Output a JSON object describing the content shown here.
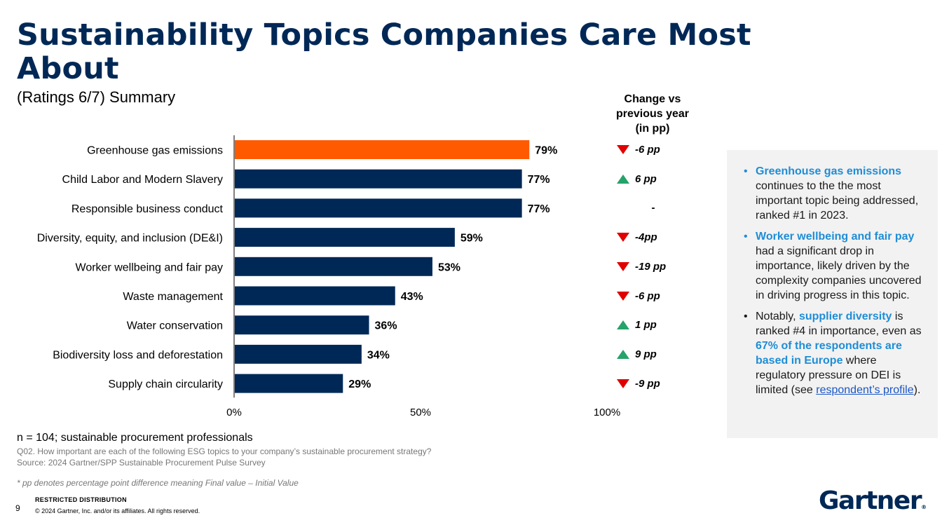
{
  "title": "Sustainability Topics Companies Care Most About",
  "subtitle": "(Ratings 6/7) Summary",
  "change_header": [
    "Change vs",
    "previous year",
    "(in pp)"
  ],
  "chart_data": {
    "type": "bar",
    "orientation": "horizontal",
    "categories": [
      "Greenhouse gas emissions",
      "Child Labor and Modern Slavery",
      "Responsible business conduct",
      "Diversity, equity, and inclusion (DE&I)",
      "Worker wellbeing and fair pay",
      "Waste management",
      "Water conservation",
      "Biodiversity loss and deforestation",
      "Supply chain circularity"
    ],
    "values": [
      79,
      77,
      77,
      59,
      53,
      43,
      36,
      34,
      29
    ],
    "value_labels": [
      "79%",
      "77%",
      "77%",
      "59%",
      "53%",
      "43%",
      "36%",
      "34%",
      "29%"
    ],
    "xlim": [
      0,
      100
    ],
    "xticks": [
      "0%",
      "50%",
      "100%"
    ],
    "highlight_index": 0,
    "colors": {
      "highlight": "#ff5a00",
      "bar": "#002856",
      "axis": "#7f7f7f"
    },
    "change": [
      {
        "dir": "down",
        "label": "-6 pp"
      },
      {
        "dir": "up",
        "label": "6 pp"
      },
      {
        "dir": "none",
        "label": "-"
      },
      {
        "dir": "down",
        "label": "-4pp"
      },
      {
        "dir": "down",
        "label": "-19 pp"
      },
      {
        "dir": "down",
        "label": "-6 pp"
      },
      {
        "dir": "up",
        "label": "1 pp"
      },
      {
        "dir": "up",
        "label": "9 pp"
      },
      {
        "dir": "down",
        "label": "-9 pp"
      }
    ]
  },
  "callout": {
    "b1_hl": "Greenhouse gas emissions",
    "b1_text": " continues to the the most important topic being addressed, ranked #1 in 2023.",
    "b2_hl": "Worker wellbeing and fair pay",
    "b2_text": " had a significant drop in importance, likely driven by the complexity companies uncovered in driving progress in this topic.",
    "b3_pre": "Notably, ",
    "b3_hl1": "supplier diversity",
    "b3_mid": " is ranked #4 in importance, even as ",
    "b3_hl2": "67% of the respondents are based in Europe",
    "b3_post": " where regulatory pressure on DEI is limited (see ",
    "b3_link": "respondent’s profile",
    "b3_end": ")."
  },
  "footer": {
    "n": "n = 104; sustainable procurement professionals",
    "q": "Q02. How important are each of the following ESG topics to your company’s sustainable procurement strategy?",
    "source": "Source: 2024 Gartner/SPP Sustainable Procurement Pulse Survey",
    "pp_note": "* pp denotes percentage point difference meaning Final value – Initial Value",
    "page": "9",
    "restricted": "RESTRICTED DISTRIBUTION",
    "copyright": "© 2024 Gartner, Inc. and/or its affiliates. All rights reserved.",
    "logo": "Gartner",
    "logo_mark": "®"
  }
}
